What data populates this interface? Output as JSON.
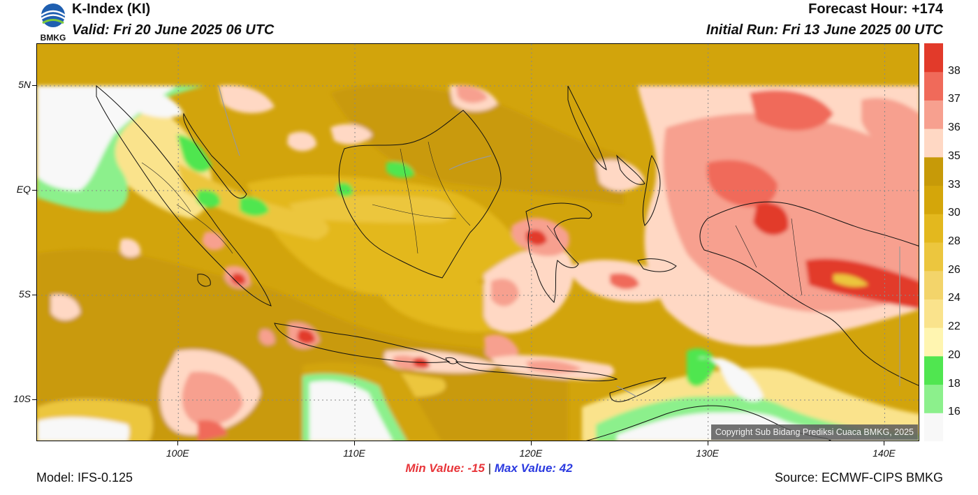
{
  "header": {
    "logo_text": "BMKG",
    "title": "K-Index (KI)",
    "valid": "Valid: Fri 20 June 2025 06 UTC",
    "forecast_hour": "Forecast Hour: +174",
    "initial_run": "Initial Run: Fri 13 June 2025 00 UTC"
  },
  "map": {
    "lat_labels": [
      {
        "label": "5N",
        "lat": 5
      },
      {
        "label": "EQ",
        "lat": 0
      },
      {
        "label": "5S",
        "lat": -5
      },
      {
        "label": "10S",
        "lat": -10
      }
    ],
    "lon_labels": [
      {
        "label": "100E",
        "lon": 100
      },
      {
        "label": "110E",
        "lon": 110
      },
      {
        "label": "120E",
        "lon": 120
      },
      {
        "label": "130E",
        "lon": 130
      },
      {
        "label": "140E",
        "lon": 140
      }
    ],
    "extent": {
      "lon_min": 92,
      "lon_max": 142,
      "lat_min": -12,
      "lat_max": 7
    },
    "copyright": "Copyright Sub Bidang Prediksi Cuaca BMKG, 2025"
  },
  "colorbar": {
    "labels": [
      "16",
      "18",
      "20",
      "22",
      "24",
      "26",
      "28",
      "30",
      "33",
      "35",
      "36",
      "37",
      "38"
    ],
    "colors": [
      "#f8f8f8",
      "#8cf08c",
      "#50e650",
      "#fff5b0",
      "#fae38c",
      "#f3d46a",
      "#ecc63e",
      "#e3b81e",
      "#d4a60a",
      "#c79a08",
      "#ffd8c4",
      "#f7a08f",
      "#f06a5a",
      "#e23a2a"
    ]
  },
  "stats": {
    "min_value": "Min Value: -15",
    "separator": "|",
    "max_value": "Max Value:  42"
  },
  "footer": {
    "model": "Model: IFS-0.125",
    "source": "Source: ECMWF-CIPS BMKG"
  }
}
